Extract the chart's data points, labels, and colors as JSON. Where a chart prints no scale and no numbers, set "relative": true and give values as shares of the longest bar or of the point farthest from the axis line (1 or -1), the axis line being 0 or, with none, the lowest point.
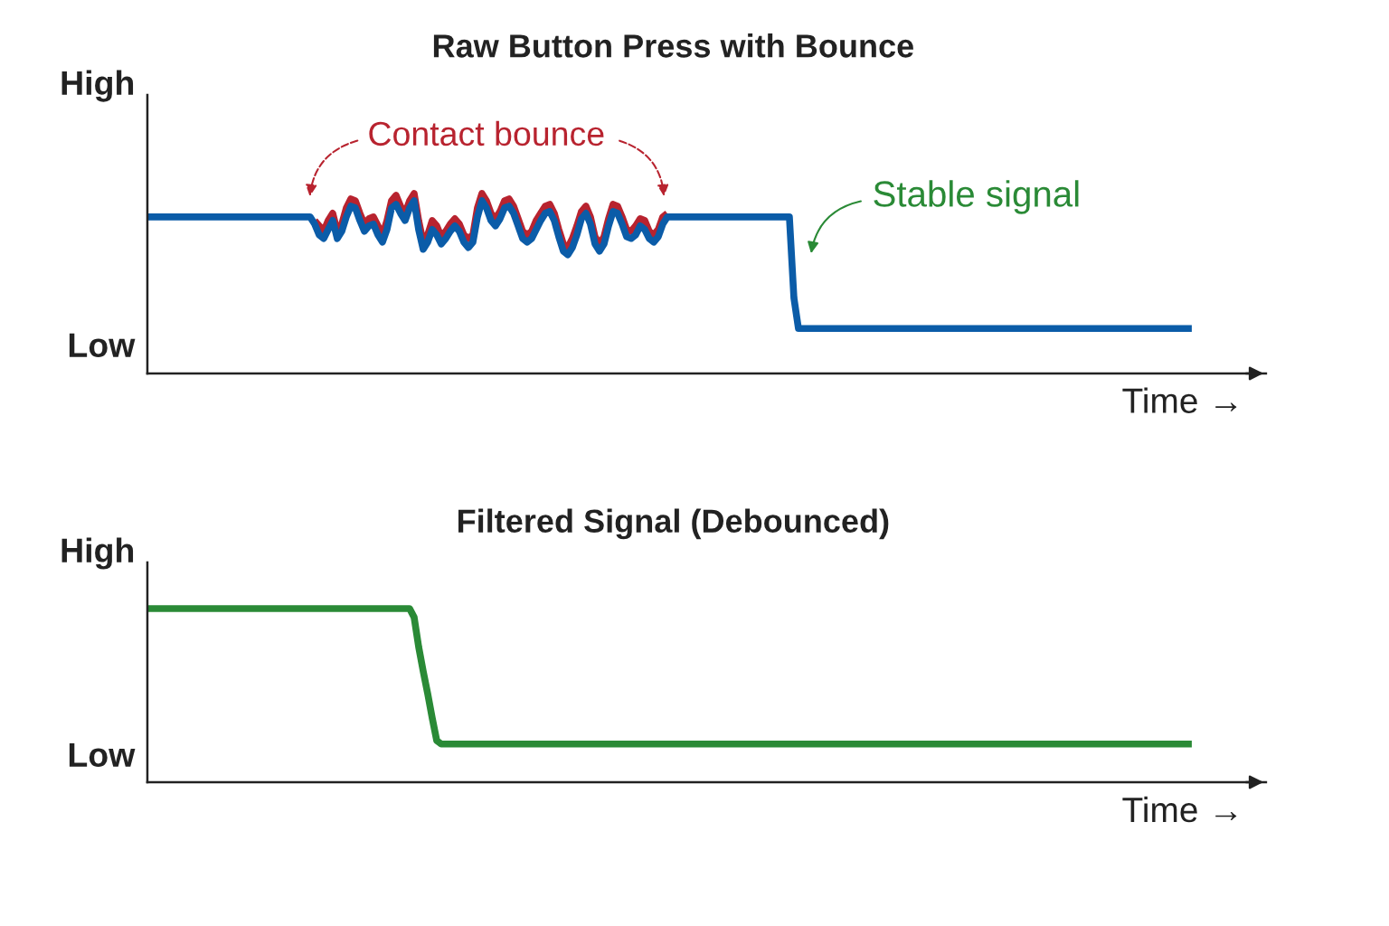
{
  "chart_data": [
    {
      "type": "line",
      "title": "Raw Button Press with Bounce",
      "xlabel": "Time →",
      "relative": true,
      "categories": [
        null,
        null,
        null,
        null,
        null,
        null,
        null,
        null,
        null,
        null,
        null,
        null,
        null,
        null,
        null,
        null,
        null,
        null,
        null,
        null,
        null,
        null,
        null,
        null,
        null,
        null,
        null,
        null,
        null,
        null,
        null,
        null,
        null,
        null,
        null,
        null,
        null,
        null,
        null,
        null,
        null,
        null,
        null,
        null,
        null,
        null,
        null,
        null,
        null,
        null,
        null,
        null,
        null,
        null,
        null,
        null,
        null,
        null,
        null,
        null,
        null,
        null,
        null,
        null,
        null,
        null,
        null,
        null,
        null,
        null,
        null,
        null,
        null,
        null,
        null,
        null,
        null,
        null,
        null,
        null,
        null,
        null,
        null,
        null,
        null,
        null,
        null,
        null,
        null,
        null,
        null,
        null,
        null,
        null,
        null,
        null,
        null,
        null,
        null,
        null,
        null,
        null,
        null,
        null,
        null,
        null,
        null,
        null,
        null,
        null,
        null,
        null,
        null,
        null,
        null,
        null,
        null,
        null,
        null,
        null,
        null,
        null,
        null,
        null,
        null,
        null,
        null,
        null,
        null,
        null,
        null,
        null,
        null,
        null,
        null,
        null,
        null,
        null,
        null,
        null,
        null,
        null,
        null,
        null,
        null,
        null,
        null,
        null,
        null,
        null,
        null,
        null,
        null,
        null,
        null,
        null,
        null,
        null,
        null,
        null,
        null,
        null,
        null,
        null,
        null,
        null,
        null,
        null,
        null,
        null,
        null,
        null,
        null,
        null,
        null,
        null,
        null,
        null,
        null,
        null,
        null,
        null,
        null,
        null,
        null,
        null,
        null,
        null,
        null,
        null,
        null,
        null,
        null,
        null,
        null,
        null,
        null,
        null,
        null,
        null,
        null,
        null,
        null,
        null,
        null,
        null,
        null,
        null,
        null,
        null,
        null,
        null,
        null,
        null,
        null,
        null,
        null,
        null,
        null,
        null,
        null,
        null,
        null,
        null,
        null,
        null,
        null,
        null,
        null,
        null,
        null,
        null
      ],
      "series": [
        {
          "color": "#b8232f",
          "values": [
            null,
            null,
            null,
            null,
            null,
            null,
            null,
            null,
            null,
            null,
            null,
            null,
            null,
            null,
            null,
            null,
            null,
            null,
            null,
            null,
            null,
            null,
            null,
            null,
            null,
            null,
            null,
            null,
            null,
            null,
            null,
            null,
            null,
            null,
            null,
            null,
            null,
            0.85,
            0.82,
            0.79,
            0.85,
            0.89,
            0.79,
            0.83,
            0.92,
            0.97,
            0.96,
            0.89,
            0.83,
            0.86,
            0.87,
            0.82,
            0.77,
            0.85,
            0.96,
            0.99,
            0.93,
            0.89,
            0.96,
            1.0,
            0.85,
            0.73,
            0.77,
            0.85,
            0.82,
            0.76,
            0.79,
            0.83,
            0.86,
            0.83,
            0.77,
            0.75,
            0.77,
            0.92,
            1.0,
            0.96,
            0.89,
            0.86,
            0.9,
            0.96,
            0.97,
            0.93,
            0.86,
            0.79,
            0.77,
            0.79,
            0.85,
            0.89,
            0.93,
            0.94,
            0.89,
            0.8,
            0.72,
            0.7,
            0.75,
            0.82,
            0.9,
            0.93,
            0.87,
            0.76,
            0.72,
            0.76,
            0.86,
            0.94,
            0.93,
            0.87,
            0.8,
            0.79,
            0.82,
            0.86,
            0.85,
            0.79,
            0.77,
            0.8,
            0.87,
            0.89,
            null,
            null,
            null,
            null,
            null,
            null,
            null,
            null,
            null,
            null,
            null,
            null,
            null,
            null,
            null,
            null,
            null,
            null,
            null,
            null,
            null,
            null,
            null,
            null,
            null,
            null,
            null,
            null,
            null,
            null,
            null,
            null,
            null,
            null,
            null,
            null,
            null,
            null,
            null,
            null,
            null,
            null,
            null,
            null,
            null,
            null,
            null,
            null,
            null,
            null,
            null,
            null,
            null,
            null,
            null,
            null,
            null,
            null,
            null,
            null,
            null,
            null,
            null,
            null,
            null,
            null,
            null,
            null,
            null,
            null,
            null,
            null,
            null,
            null,
            null,
            null,
            null,
            null,
            null,
            null,
            null,
            null,
            null,
            null,
            null,
            null,
            null,
            null,
            null,
            null,
            null,
            null,
            null,
            null,
            null,
            null,
            null,
            null,
            null,
            null,
            null,
            null,
            null,
            null,
            null,
            null,
            null,
            null,
            null,
            null,
            null,
            null,
            null,
            null,
            null,
            null
          ]
        },
        {
          "color": "#0b5ca8",
          "values": [
            0.87,
            0.87,
            0.87,
            0.87,
            0.87,
            0.87,
            0.87,
            0.87,
            0.87,
            0.87,
            0.87,
            0.87,
            0.87,
            0.87,
            0.87,
            0.87,
            0.87,
            0.87,
            0.87,
            0.87,
            0.87,
            0.87,
            0.87,
            0.87,
            0.87,
            0.87,
            0.87,
            0.87,
            0.87,
            0.87,
            0.87,
            0.87,
            0.87,
            0.87,
            0.87,
            0.87,
            0.87,
            0.83,
            0.77,
            0.75,
            0.8,
            0.85,
            0.75,
            0.79,
            0.87,
            0.93,
            0.92,
            0.85,
            0.79,
            0.82,
            0.83,
            0.77,
            0.73,
            0.8,
            0.92,
            0.94,
            0.89,
            0.85,
            0.92,
            0.96,
            0.8,
            0.69,
            0.73,
            0.8,
            0.77,
            0.72,
            0.75,
            0.79,
            0.82,
            0.79,
            0.73,
            0.7,
            0.73,
            0.87,
            0.96,
            0.92,
            0.85,
            0.82,
            0.86,
            0.92,
            0.93,
            0.89,
            0.82,
            0.75,
            0.73,
            0.75,
            0.8,
            0.85,
            0.89,
            0.9,
            0.85,
            0.76,
            0.68,
            0.66,
            0.7,
            0.77,
            0.86,
            0.89,
            0.83,
            0.72,
            0.68,
            0.72,
            0.82,
            0.9,
            0.89,
            0.83,
            0.76,
            0.75,
            0.77,
            0.82,
            0.8,
            0.75,
            0.73,
            0.76,
            0.83,
            0.87,
            0.87,
            0.87,
            0.87,
            0.87,
            0.87,
            0.87,
            0.87,
            0.87,
            0.87,
            0.87,
            0.87,
            0.87,
            0.87,
            0.87,
            0.87,
            0.87,
            0.87,
            0.87,
            0.87,
            0.87,
            0.87,
            0.87,
            0.87,
            0.87,
            0.87,
            0.87,
            0.87,
            0.42,
            0.25,
            0.25,
            0.25,
            0.25,
            0.25,
            0.25,
            0.25,
            0.25,
            0.25,
            0.25,
            0.25,
            0.25,
            0.25,
            0.25,
            0.25,
            0.25,
            0.25,
            0.25,
            0.25,
            0.25,
            0.25,
            0.25,
            0.25,
            0.25,
            0.25,
            0.25,
            0.25,
            0.25,
            0.25,
            0.25,
            0.25,
            0.25,
            0.25,
            0.25,
            0.25,
            0.25,
            0.25,
            0.25,
            0.25,
            0.25,
            0.25,
            0.25,
            0.25,
            0.25,
            0.25,
            0.25,
            0.25,
            0.25,
            0.25,
            0.25,
            0.25,
            0.25,
            0.25,
            0.25,
            0.25,
            0.25,
            0.25,
            0.25,
            0.25,
            0.25,
            0.25,
            0.25,
            0.25,
            0.25,
            0.25,
            0.25,
            0.25,
            0.25,
            0.25,
            0.25,
            0.25,
            0.25,
            0.25,
            0.25,
            0.25,
            0.25,
            0.25,
            0.25,
            0.25,
            0.25,
            0.25,
            0.25,
            0.25,
            0.25,
            0.25,
            0.25,
            0.25,
            0.25
          ]
        }
      ],
      "annotations": [
        "High",
        "Low",
        "Contact bounce",
        "Stable signal"
      ]
    },
    {
      "type": "line",
      "title": "Filtered Signal (Debounced)",
      "xlabel": "Time →",
      "relative": true,
      "categories": [
        null,
        null,
        null,
        null,
        null,
        null,
        null,
        null,
        null,
        null,
        null,
        null,
        null,
        null,
        null,
        null,
        null,
        null,
        null,
        null,
        null,
        null,
        null,
        null,
        null,
        null,
        null,
        null,
        null,
        null,
        null,
        null,
        null,
        null,
        null,
        null,
        null,
        null,
        null,
        null,
        null,
        null,
        null,
        null,
        null,
        null,
        null,
        null,
        null,
        null,
        null,
        null,
        null,
        null,
        null,
        null,
        null,
        null,
        null,
        null,
        null,
        null,
        null,
        null,
        null,
        null,
        null,
        null,
        null,
        null,
        null,
        null,
        null,
        null,
        null,
        null,
        null,
        null,
        null,
        null,
        null,
        null,
        null,
        null,
        null,
        null,
        null,
        null,
        null,
        null,
        null,
        null,
        null,
        null,
        null,
        null,
        null,
        null,
        null,
        null,
        null,
        null,
        null,
        null,
        null,
        null,
        null,
        null,
        null,
        null,
        null,
        null,
        null,
        null,
        null,
        null,
        null,
        null,
        null,
        null,
        null,
        null,
        null,
        null,
        null,
        null,
        null,
        null,
        null,
        null,
        null,
        null,
        null,
        null,
        null,
        null,
        null,
        null,
        null,
        null,
        null,
        null,
        null,
        null,
        null,
        null,
        null,
        null,
        null,
        null,
        null,
        null,
        null,
        null,
        null,
        null,
        null,
        null,
        null,
        null,
        null,
        null,
        null,
        null,
        null,
        null,
        null,
        null,
        null,
        null,
        null,
        null,
        null,
        null,
        null,
        null,
        null,
        null,
        null,
        null,
        null,
        null,
        null,
        null,
        null,
        null,
        null,
        null,
        null,
        null,
        null,
        null,
        null,
        null,
        null,
        null,
        null,
        null,
        null,
        null,
        null,
        null,
        null,
        null,
        null,
        null,
        null,
        null,
        null,
        null,
        null,
        null,
        null,
        null,
        null,
        null,
        null,
        null,
        null,
        null,
        null,
        null,
        null,
        null,
        null,
        null,
        null,
        null,
        null,
        null,
        null,
        null
      ],
      "series": [
        {
          "color": "#2a8a36",
          "values": [
            1.0,
            1.0,
            1.0,
            1.0,
            1.0,
            1.0,
            1.0,
            1.0,
            1.0,
            1.0,
            1.0,
            1.0,
            1.0,
            1.0,
            1.0,
            1.0,
            1.0,
            1.0,
            1.0,
            1.0,
            1.0,
            1.0,
            1.0,
            1.0,
            1.0,
            1.0,
            1.0,
            1.0,
            1.0,
            1.0,
            1.0,
            1.0,
            1.0,
            1.0,
            1.0,
            1.0,
            1.0,
            1.0,
            1.0,
            1.0,
            1.0,
            1.0,
            1.0,
            1.0,
            1.0,
            1.0,
            1.0,
            1.0,
            1.0,
            1.0,
            1.0,
            1.0,
            1.0,
            1.0,
            1.0,
            1.0,
            1.0,
            1.0,
            1.0,
            0.95,
            0.78,
            0.64,
            0.51,
            0.37,
            0.24,
            0.22,
            0.22,
            0.22,
            0.22,
            0.22,
            0.22,
            0.22,
            0.22,
            0.22,
            0.22,
            0.22,
            0.22,
            0.22,
            0.22,
            0.22,
            0.22,
            0.22,
            0.22,
            0.22,
            0.22,
            0.22,
            0.22,
            0.22,
            0.22,
            0.22,
            0.22,
            0.22,
            0.22,
            0.22,
            0.22,
            0.22,
            0.22,
            0.22,
            0.22,
            0.22,
            0.22,
            0.22,
            0.22,
            0.22,
            0.22,
            0.22,
            0.22,
            0.22,
            0.22,
            0.22,
            0.22,
            0.22,
            0.22,
            0.22,
            0.22,
            0.22,
            0.22,
            0.22,
            0.22,
            0.22,
            0.22,
            0.22,
            0.22,
            0.22,
            0.22,
            0.22,
            0.22,
            0.22,
            0.22,
            0.22,
            0.22,
            0.22,
            0.22,
            0.22,
            0.22,
            0.22,
            0.22,
            0.22,
            0.22,
            0.22,
            0.22,
            0.22,
            0.22,
            0.22,
            0.22,
            0.22,
            0.22,
            0.22,
            0.22,
            0.22,
            0.22,
            0.22,
            0.22,
            0.22,
            0.22,
            0.22,
            0.22,
            0.22,
            0.22,
            0.22,
            0.22,
            0.22,
            0.22,
            0.22,
            0.22,
            0.22,
            0.22,
            0.22,
            0.22,
            0.22,
            0.22,
            0.22,
            0.22,
            0.22,
            0.22,
            0.22,
            0.22,
            0.22,
            0.22,
            0.22,
            0.22,
            0.22,
            0.22,
            0.22,
            0.22,
            0.22,
            0.22,
            0.22,
            0.22,
            0.22,
            0.22,
            0.22,
            0.22,
            0.22,
            0.22,
            0.22,
            0.22,
            0.22,
            0.22,
            0.22,
            0.22,
            0.22,
            0.22,
            0.22,
            0.22,
            0.22,
            0.22,
            0.22,
            0.22,
            0.22,
            0.22,
            0.22,
            0.22,
            0.22,
            0.22,
            0.22,
            0.22,
            0.22,
            0.22,
            0.22,
            0.22,
            0.22,
            0.22,
            0.22,
            0.22,
            0.22,
            0.22,
            0.22,
            0.22,
            0.22,
            0.22,
            0.22
          ]
        }
      ],
      "annotations": [
        "High",
        "Low"
      ]
    }
  ]
}
